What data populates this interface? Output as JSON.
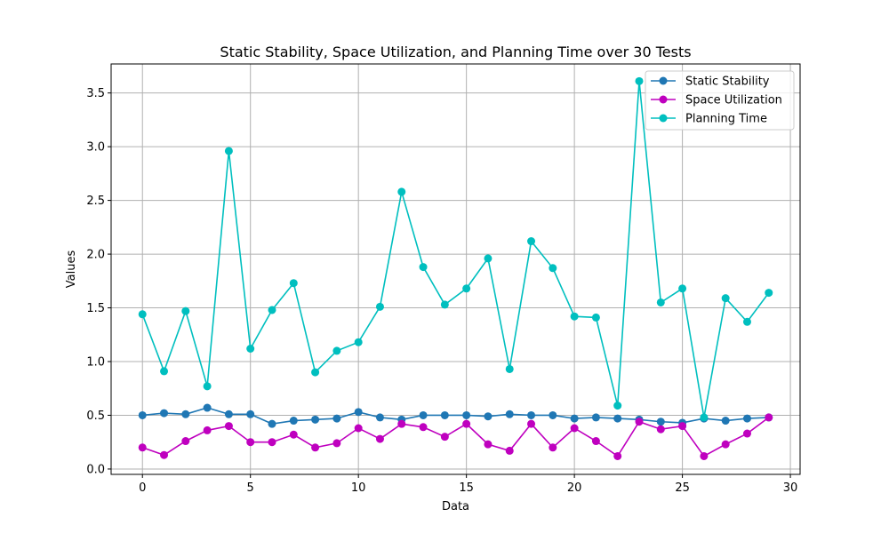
{
  "chart_data": {
    "type": "line",
    "title": "Static Stability, Space Utilization, and Planning Time over 30 Tests",
    "xlabel": "Data",
    "ylabel": "Values",
    "xlim": [
      -1.45,
      30.45
    ],
    "ylim": [
      -0.05,
      3.77
    ],
    "xticks": [
      0,
      5,
      10,
      15,
      20,
      25,
      30
    ],
    "yticks": [
      0.0,
      0.5,
      1.0,
      1.5,
      2.0,
      2.5,
      3.0,
      3.5
    ],
    "xtick_labels": [
      "0",
      "5",
      "10",
      "15",
      "20",
      "25",
      "30"
    ],
    "ytick_labels": [
      "0.0",
      "0.5",
      "1.0",
      "1.5",
      "2.0",
      "2.5",
      "3.0",
      "3.5"
    ],
    "grid": true,
    "legend_position": "top-right",
    "x": [
      0,
      1,
      2,
      3,
      4,
      5,
      6,
      7,
      8,
      9,
      10,
      11,
      12,
      13,
      14,
      15,
      16,
      17,
      18,
      19,
      20,
      21,
      22,
      23,
      24,
      25,
      26,
      27,
      28,
      29
    ],
    "series": [
      {
        "name": "Static Stability",
        "color": "#1f77b4",
        "values": [
          0.5,
          0.52,
          0.51,
          0.57,
          0.51,
          0.51,
          0.42,
          0.45,
          0.46,
          0.47,
          0.53,
          0.48,
          0.46,
          0.5,
          0.5,
          0.5,
          0.49,
          0.51,
          0.5,
          0.5,
          0.47,
          0.48,
          0.47,
          0.46,
          0.44,
          0.43,
          0.47,
          0.45,
          0.47,
          0.48
        ]
      },
      {
        "name": "Space Utilization",
        "color": "#bf00bf",
        "values": [
          0.2,
          0.13,
          0.26,
          0.36,
          0.4,
          0.25,
          0.25,
          0.32,
          0.2,
          0.24,
          0.38,
          0.28,
          0.42,
          0.39,
          0.3,
          0.42,
          0.23,
          0.17,
          0.42,
          0.2,
          0.38,
          0.26,
          0.12,
          0.44,
          0.37,
          0.4,
          0.12,
          0.23,
          0.33,
          0.48
        ]
      },
      {
        "name": "Planning Time",
        "color": "#00bfbf",
        "values": [
          1.44,
          0.91,
          1.47,
          0.77,
          2.96,
          1.12,
          1.48,
          1.73,
          0.9,
          1.1,
          1.18,
          1.51,
          2.58,
          1.88,
          1.53,
          1.68,
          1.96,
          0.93,
          2.12,
          1.87,
          1.42,
          1.41,
          0.59,
          3.61,
          1.55,
          1.68,
          0.48,
          1.59,
          1.37,
          1.64
        ]
      }
    ]
  }
}
